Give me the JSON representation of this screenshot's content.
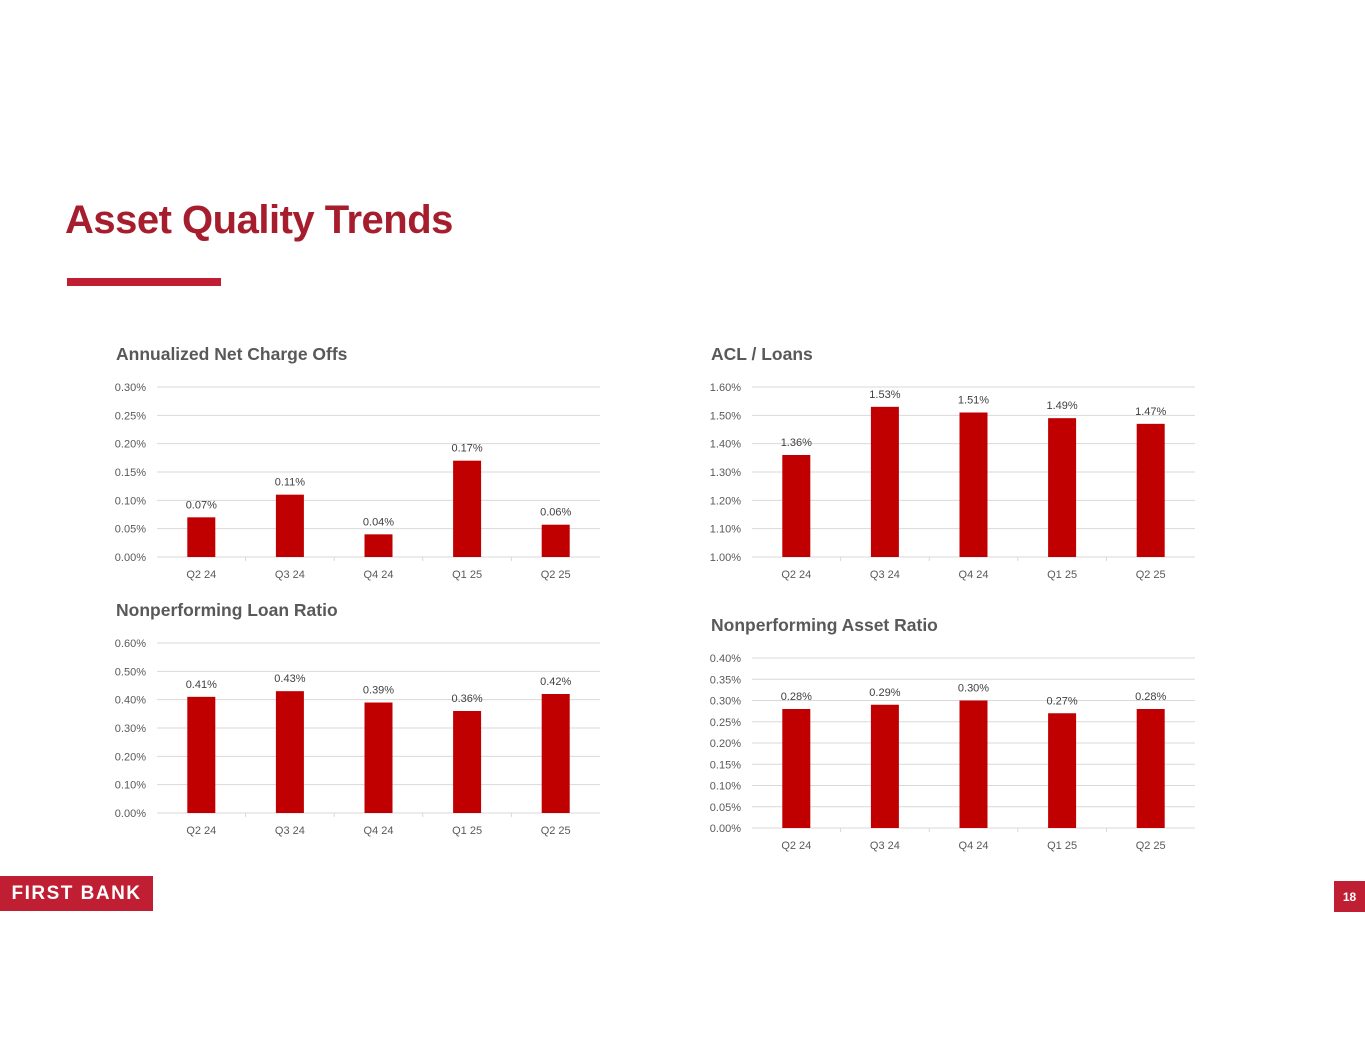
{
  "page": {
    "title": "Asset Quality Trends",
    "logo_text": "FIRST BANK",
    "page_number": "18"
  },
  "colors": {
    "accent": "#c01e32",
    "title": "#a61e2e",
    "bar": "#c00000",
    "gridline": "#d9d9d9",
    "text": "#595959"
  },
  "chart_data": [
    {
      "type": "bar",
      "title": "Annualized Net Charge Offs",
      "categories": [
        "Q2 24",
        "Q3 24",
        "Q4 24",
        "Q1 25",
        "Q2 25"
      ],
      "values": [
        0.07,
        0.11,
        0.04,
        0.17,
        0.057
      ],
      "data_labels": [
        "0.07%",
        "0.11%",
        "0.04%",
        "0.17%",
        "0.06%"
      ],
      "yticks": [
        "0.00%",
        "0.05%",
        "0.10%",
        "0.15%",
        "0.20%",
        "0.25%",
        "0.30%"
      ],
      "ylim": [
        0,
        0.3
      ],
      "xlabel": "",
      "ylabel": "",
      "grid": true,
      "legend": "none"
    },
    {
      "type": "bar",
      "title": "ACL / Loans",
      "categories": [
        "Q2 24",
        "Q3 24",
        "Q4 24",
        "Q1 25",
        "Q2 25"
      ],
      "values": [
        1.36,
        1.53,
        1.51,
        1.49,
        1.47
      ],
      "data_labels": [
        "1.36%",
        "1.53%",
        "1.51%",
        "1.49%",
        "1.47%"
      ],
      "yticks": [
        "1.00%",
        "1.10%",
        "1.20%",
        "1.30%",
        "1.40%",
        "1.50%",
        "1.60%"
      ],
      "ylim": [
        1.0,
        1.6
      ],
      "xlabel": "",
      "ylabel": "",
      "grid": true,
      "legend": "none"
    },
    {
      "type": "bar",
      "title": "Nonperforming Loan Ratio",
      "categories": [
        "Q2 24",
        "Q3 24",
        "Q4 24",
        "Q1 25",
        "Q2 25"
      ],
      "values": [
        0.41,
        0.43,
        0.39,
        0.36,
        0.42
      ],
      "data_labels": [
        "0.41%",
        "0.43%",
        "0.39%",
        "0.36%",
        "0.42%"
      ],
      "yticks": [
        "0.00%",
        "0.10%",
        "0.20%",
        "0.30%",
        "0.40%",
        "0.50%",
        "0.60%"
      ],
      "ylim": [
        0,
        0.6
      ],
      "xlabel": "",
      "ylabel": "",
      "grid": true,
      "legend": "none"
    },
    {
      "type": "bar",
      "title": "Nonperforming Asset Ratio",
      "categories": [
        "Q2 24",
        "Q3 24",
        "Q4 24",
        "Q1 25",
        "Q2 25"
      ],
      "values": [
        0.28,
        0.29,
        0.3,
        0.27,
        0.28
      ],
      "data_labels": [
        "0.28%",
        "0.29%",
        "0.30%",
        "0.27%",
        "0.28%"
      ],
      "yticks": [
        "0.00%",
        "0.05%",
        "0.10%",
        "0.15%",
        "0.20%",
        "0.25%",
        "0.30%",
        "0.35%",
        "0.40%"
      ],
      "ylim": [
        0,
        0.4
      ],
      "xlabel": "",
      "ylabel": "",
      "grid": true,
      "legend": "none"
    }
  ]
}
